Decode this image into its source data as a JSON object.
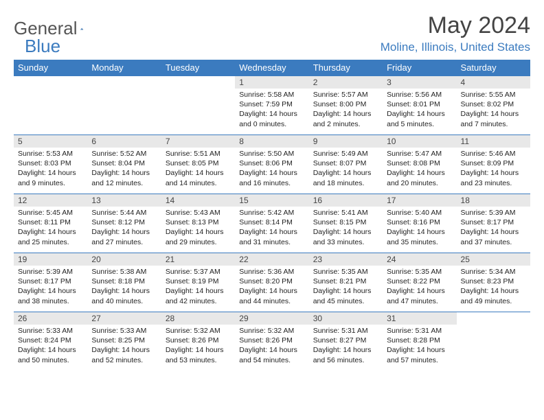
{
  "logo": {
    "text1": "General",
    "text2": "Blue"
  },
  "title": "May 2024",
  "location": "Moline, Illinois, United States",
  "weekdays": [
    "Sunday",
    "Monday",
    "Tuesday",
    "Wednesday",
    "Thursday",
    "Friday",
    "Saturday"
  ],
  "colors": {
    "header_bg": "#3b7bbf",
    "header_text": "#ffffff",
    "daynum_bg": "#e8e8e8",
    "border": "#3b7bbf",
    "logo_gray": "#555555",
    "logo_blue": "#3b7bbf"
  },
  "cells": [
    {
      "day": "",
      "sunrise": "",
      "sunset": "",
      "daylight": "",
      "empty": true
    },
    {
      "day": "",
      "sunrise": "",
      "sunset": "",
      "daylight": "",
      "empty": true
    },
    {
      "day": "",
      "sunrise": "",
      "sunset": "",
      "daylight": "",
      "empty": true
    },
    {
      "day": "1",
      "sunrise": "Sunrise: 5:58 AM",
      "sunset": "Sunset: 7:59 PM",
      "daylight": "Daylight: 14 hours and 0 minutes."
    },
    {
      "day": "2",
      "sunrise": "Sunrise: 5:57 AM",
      "sunset": "Sunset: 8:00 PM",
      "daylight": "Daylight: 14 hours and 2 minutes."
    },
    {
      "day": "3",
      "sunrise": "Sunrise: 5:56 AM",
      "sunset": "Sunset: 8:01 PM",
      "daylight": "Daylight: 14 hours and 5 minutes."
    },
    {
      "day": "4",
      "sunrise": "Sunrise: 5:55 AM",
      "sunset": "Sunset: 8:02 PM",
      "daylight": "Daylight: 14 hours and 7 minutes."
    },
    {
      "day": "5",
      "sunrise": "Sunrise: 5:53 AM",
      "sunset": "Sunset: 8:03 PM",
      "daylight": "Daylight: 14 hours and 9 minutes."
    },
    {
      "day": "6",
      "sunrise": "Sunrise: 5:52 AM",
      "sunset": "Sunset: 8:04 PM",
      "daylight": "Daylight: 14 hours and 12 minutes."
    },
    {
      "day": "7",
      "sunrise": "Sunrise: 5:51 AM",
      "sunset": "Sunset: 8:05 PM",
      "daylight": "Daylight: 14 hours and 14 minutes."
    },
    {
      "day": "8",
      "sunrise": "Sunrise: 5:50 AM",
      "sunset": "Sunset: 8:06 PM",
      "daylight": "Daylight: 14 hours and 16 minutes."
    },
    {
      "day": "9",
      "sunrise": "Sunrise: 5:49 AM",
      "sunset": "Sunset: 8:07 PM",
      "daylight": "Daylight: 14 hours and 18 minutes."
    },
    {
      "day": "10",
      "sunrise": "Sunrise: 5:47 AM",
      "sunset": "Sunset: 8:08 PM",
      "daylight": "Daylight: 14 hours and 20 minutes."
    },
    {
      "day": "11",
      "sunrise": "Sunrise: 5:46 AM",
      "sunset": "Sunset: 8:09 PM",
      "daylight": "Daylight: 14 hours and 23 minutes."
    },
    {
      "day": "12",
      "sunrise": "Sunrise: 5:45 AM",
      "sunset": "Sunset: 8:11 PM",
      "daylight": "Daylight: 14 hours and 25 minutes."
    },
    {
      "day": "13",
      "sunrise": "Sunrise: 5:44 AM",
      "sunset": "Sunset: 8:12 PM",
      "daylight": "Daylight: 14 hours and 27 minutes."
    },
    {
      "day": "14",
      "sunrise": "Sunrise: 5:43 AM",
      "sunset": "Sunset: 8:13 PM",
      "daylight": "Daylight: 14 hours and 29 minutes."
    },
    {
      "day": "15",
      "sunrise": "Sunrise: 5:42 AM",
      "sunset": "Sunset: 8:14 PM",
      "daylight": "Daylight: 14 hours and 31 minutes."
    },
    {
      "day": "16",
      "sunrise": "Sunrise: 5:41 AM",
      "sunset": "Sunset: 8:15 PM",
      "daylight": "Daylight: 14 hours and 33 minutes."
    },
    {
      "day": "17",
      "sunrise": "Sunrise: 5:40 AM",
      "sunset": "Sunset: 8:16 PM",
      "daylight": "Daylight: 14 hours and 35 minutes."
    },
    {
      "day": "18",
      "sunrise": "Sunrise: 5:39 AM",
      "sunset": "Sunset: 8:17 PM",
      "daylight": "Daylight: 14 hours and 37 minutes."
    },
    {
      "day": "19",
      "sunrise": "Sunrise: 5:39 AM",
      "sunset": "Sunset: 8:17 PM",
      "daylight": "Daylight: 14 hours and 38 minutes."
    },
    {
      "day": "20",
      "sunrise": "Sunrise: 5:38 AM",
      "sunset": "Sunset: 8:18 PM",
      "daylight": "Daylight: 14 hours and 40 minutes."
    },
    {
      "day": "21",
      "sunrise": "Sunrise: 5:37 AM",
      "sunset": "Sunset: 8:19 PM",
      "daylight": "Daylight: 14 hours and 42 minutes."
    },
    {
      "day": "22",
      "sunrise": "Sunrise: 5:36 AM",
      "sunset": "Sunset: 8:20 PM",
      "daylight": "Daylight: 14 hours and 44 minutes."
    },
    {
      "day": "23",
      "sunrise": "Sunrise: 5:35 AM",
      "sunset": "Sunset: 8:21 PM",
      "daylight": "Daylight: 14 hours and 45 minutes."
    },
    {
      "day": "24",
      "sunrise": "Sunrise: 5:35 AM",
      "sunset": "Sunset: 8:22 PM",
      "daylight": "Daylight: 14 hours and 47 minutes."
    },
    {
      "day": "25",
      "sunrise": "Sunrise: 5:34 AM",
      "sunset": "Sunset: 8:23 PM",
      "daylight": "Daylight: 14 hours and 49 minutes."
    },
    {
      "day": "26",
      "sunrise": "Sunrise: 5:33 AM",
      "sunset": "Sunset: 8:24 PM",
      "daylight": "Daylight: 14 hours and 50 minutes."
    },
    {
      "day": "27",
      "sunrise": "Sunrise: 5:33 AM",
      "sunset": "Sunset: 8:25 PM",
      "daylight": "Daylight: 14 hours and 52 minutes."
    },
    {
      "day": "28",
      "sunrise": "Sunrise: 5:32 AM",
      "sunset": "Sunset: 8:26 PM",
      "daylight": "Daylight: 14 hours and 53 minutes."
    },
    {
      "day": "29",
      "sunrise": "Sunrise: 5:32 AM",
      "sunset": "Sunset: 8:26 PM",
      "daylight": "Daylight: 14 hours and 54 minutes."
    },
    {
      "day": "30",
      "sunrise": "Sunrise: 5:31 AM",
      "sunset": "Sunset: 8:27 PM",
      "daylight": "Daylight: 14 hours and 56 minutes."
    },
    {
      "day": "31",
      "sunrise": "Sunrise: 5:31 AM",
      "sunset": "Sunset: 8:28 PM",
      "daylight": "Daylight: 14 hours and 57 minutes."
    },
    {
      "day": "",
      "sunrise": "",
      "sunset": "",
      "daylight": "",
      "empty": true
    }
  ]
}
